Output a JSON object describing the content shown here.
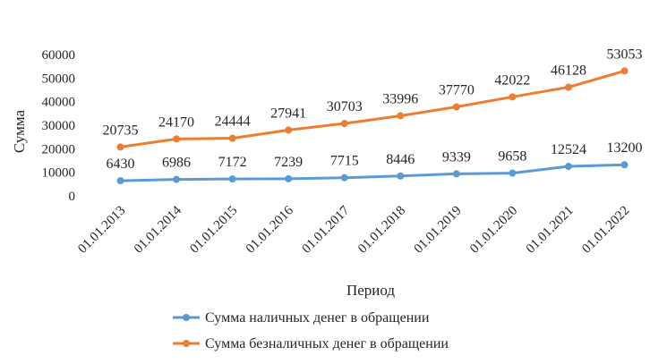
{
  "chart_data": {
    "type": "line",
    "xlabel": "Период",
    "ylabel": "Сумма",
    "ylim": [
      0,
      60000
    ],
    "yticks": [
      "0",
      "10000",
      "20000",
      "30000",
      "40000",
      "50000",
      "60000"
    ],
    "categories": [
      "01.01.2013",
      "01.01.2014",
      "01.01.2015",
      "01.01.2016",
      "01.01.2017",
      "01.01.2018",
      "01.01.2019",
      "01.01.2020",
      "01.01.2021",
      "01.01.2022"
    ],
    "series": [
      {
        "name": "Сумма наличных денег в обращении",
        "color": "#5B9BD5",
        "values": [
          6430,
          6986,
          7172,
          7239,
          7715,
          8446,
          9339,
          9658,
          12524,
          13200
        ]
      },
      {
        "name": "Сумма безналичных денег в обращении",
        "color": "#ED7D31",
        "values": [
          20735,
          24170,
          24444,
          27941,
          30703,
          33996,
          37770,
          42022,
          46128,
          53053
        ]
      }
    ],
    "grid": false,
    "legend_position": "bottom"
  }
}
